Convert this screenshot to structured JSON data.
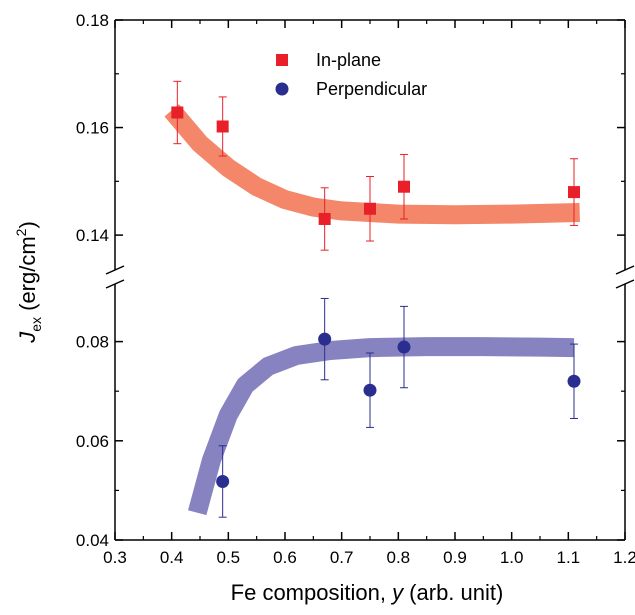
{
  "chart_data": {
    "type": "scatter",
    "title": "",
    "xlabel": "Fe composition, y (arb. unit)",
    "xlabel_parts": {
      "prefix": "Fe composition, ",
      "var": "y",
      "suffix": " (arb. unit)"
    },
    "ylabel": "J_ex (erg/cm^2)",
    "ylabel_parts": {
      "var": "J",
      "sub": "ex",
      "unit_open": " (erg/cm",
      "sup": "2",
      "unit_close": ")"
    },
    "xlim": [
      0.3,
      1.2
    ],
    "x_ticks": [
      "0.3",
      "0.4",
      "0.5",
      "0.6",
      "0.7",
      "0.8",
      "0.9",
      "1.0",
      "1.1",
      "1.2"
    ],
    "y_axis_broken": true,
    "upper_panel": {
      "ylim": [
        0.135,
        0.18
      ],
      "y_ticks": [
        "0.14",
        "0.16",
        "0.18"
      ]
    },
    "lower_panel": {
      "ylim": [
        0.04,
        0.09
      ],
      "y_ticks": [
        "0.04",
        "0.06",
        "0.08"
      ]
    },
    "legend_position": "top-center",
    "series": [
      {
        "name": "In-plane",
        "marker": "square",
        "color": "#e8202a",
        "fit_color": "#f4876a",
        "panel": "upper",
        "x": [
          0.41,
          0.49,
          0.67,
          0.75,
          0.81,
          1.11
        ],
        "y": [
          0.1628,
          0.1602,
          0.143,
          0.1449,
          0.149,
          0.148
        ],
        "err": [
          0.0058,
          0.0055,
          0.0058,
          0.006,
          0.006,
          0.0062
        ],
        "fit": [
          [
            0.4,
            0.1632
          ],
          [
            0.45,
            0.157
          ],
          [
            0.5,
            0.1525
          ],
          [
            0.55,
            0.149
          ],
          [
            0.6,
            0.1466
          ],
          [
            0.65,
            0.1452
          ],
          [
            0.7,
            0.1445
          ],
          [
            0.8,
            0.1439
          ],
          [
            0.9,
            0.1438
          ],
          [
            1.0,
            0.1439
          ],
          [
            1.12,
            0.1442
          ]
        ]
      },
      {
        "name": "Perpendicular",
        "marker": "circle",
        "color": "#2a2e8e",
        "fit_color": "#8783c0",
        "panel": "lower",
        "x": [
          0.49,
          0.67,
          0.75,
          0.81,
          1.11
        ],
        "y": [
          0.0518,
          0.0805,
          0.0702,
          0.0789,
          0.072
        ],
        "err": [
          0.0072,
          0.0082,
          0.0075,
          0.0082,
          0.0075
        ],
        "fit": [
          [
            0.445,
            0.0455
          ],
          [
            0.47,
            0.056
          ],
          [
            0.5,
            0.0652
          ],
          [
            0.53,
            0.0712
          ],
          [
            0.57,
            0.075
          ],
          [
            0.62,
            0.0772
          ],
          [
            0.68,
            0.0782
          ],
          [
            0.75,
            0.0788
          ],
          [
            0.85,
            0.079
          ],
          [
            0.95,
            0.079
          ],
          [
            1.05,
            0.0789
          ],
          [
            1.11,
            0.0788
          ]
        ]
      }
    ]
  }
}
